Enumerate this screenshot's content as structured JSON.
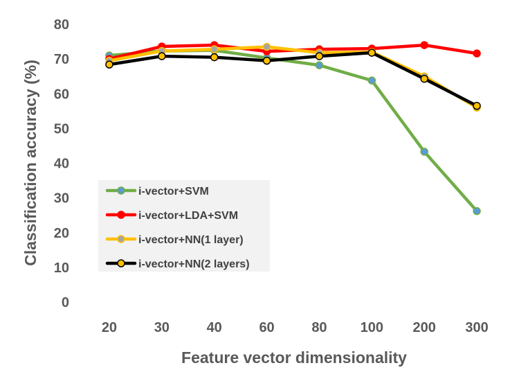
{
  "chart_data": {
    "type": "line",
    "title": "",
    "xlabel": "Feature vector dimensionality",
    "ylabel": "Classification accuracy (%)",
    "categories": [
      "20",
      "30",
      "40",
      "60",
      "80",
      "100",
      "200",
      "300"
    ],
    "ylim": [
      0,
      80
    ],
    "yticks": [
      "0",
      "10",
      "20",
      "30",
      "40",
      "50",
      "60",
      "70",
      "80"
    ],
    "grid": false,
    "legend_position": "bottom-left inside",
    "series": [
      {
        "name": "i-vector+SVM",
        "values": [
          71.0,
          72.3,
          72.5,
          70.3,
          68.2,
          63.8,
          43.3,
          26.2
        ],
        "line_color": "#70AD47",
        "marker_color": "#5B9BD5"
      },
      {
        "name": "i-vector+LDA+SVM",
        "values": [
          70.0,
          73.6,
          74.0,
          72.2,
          72.8,
          73.0,
          74.0,
          71.6
        ],
        "line_color": "#FF0000",
        "marker_color": "#FF0000"
      },
      {
        "name": "i-vector+NN(1 layer)",
        "values": [
          69.5,
          72.3,
          72.8,
          73.5,
          71.8,
          72.0,
          65.0,
          56.0
        ],
        "line_color": "#FFC000",
        "marker_color": "#A5A5A5"
      },
      {
        "name": "i-vector+NN(2 layers)",
        "values": [
          68.4,
          70.8,
          70.5,
          69.5,
          70.8,
          71.8,
          64.3,
          56.5
        ],
        "line_color": "#000000",
        "marker_color": "#FFC000"
      }
    ]
  }
}
